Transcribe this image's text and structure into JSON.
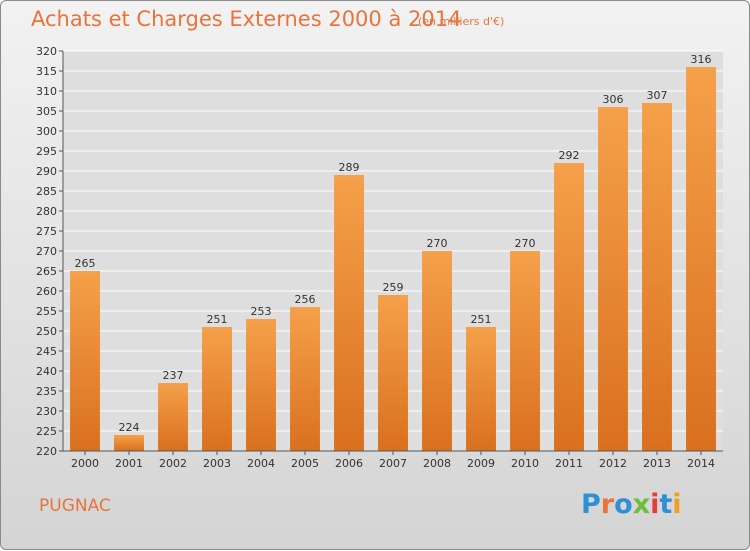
{
  "page": {
    "title": "Achats et Charges Externes 2000 à 2014",
    "subtitle": "(en milliers d'€)",
    "commune": "PUGNAC",
    "logo": {
      "text": "Proxiti",
      "letter_colors": [
        "#2e8fd6",
        "#e8743b",
        "#2e8fd6",
        "#6bbf3a",
        "#e83b3b",
        "#2e8fd6",
        "#f0a020"
      ]
    }
  },
  "chart_data": {
    "type": "bar",
    "title": "Achats et Charges Externes 2000 à 2014",
    "subtitle": "(en milliers d'€)",
    "xlabel": "",
    "ylabel": "",
    "categories": [
      "2000",
      "2001",
      "2002",
      "2003",
      "2004",
      "2005",
      "2006",
      "2007",
      "2008",
      "2009",
      "2010",
      "2011",
      "2012",
      "2013",
      "2014"
    ],
    "values": [
      265,
      224,
      237,
      251,
      253,
      256,
      289,
      259,
      270,
      251,
      270,
      292,
      306,
      307,
      316
    ],
    "ylim": [
      220,
      320
    ],
    "ytick_step": 5,
    "yticks": [
      "220",
      "225",
      "230",
      "235",
      "240",
      "245",
      "250",
      "255",
      "260",
      "265",
      "270",
      "275",
      "280",
      "285",
      "290",
      "295",
      "300",
      "305",
      "310",
      "315",
      "320"
    ],
    "grid": true,
    "bar_color": "#f0923a",
    "bar_color_dark": "#d9701f",
    "data_labels": true
  }
}
